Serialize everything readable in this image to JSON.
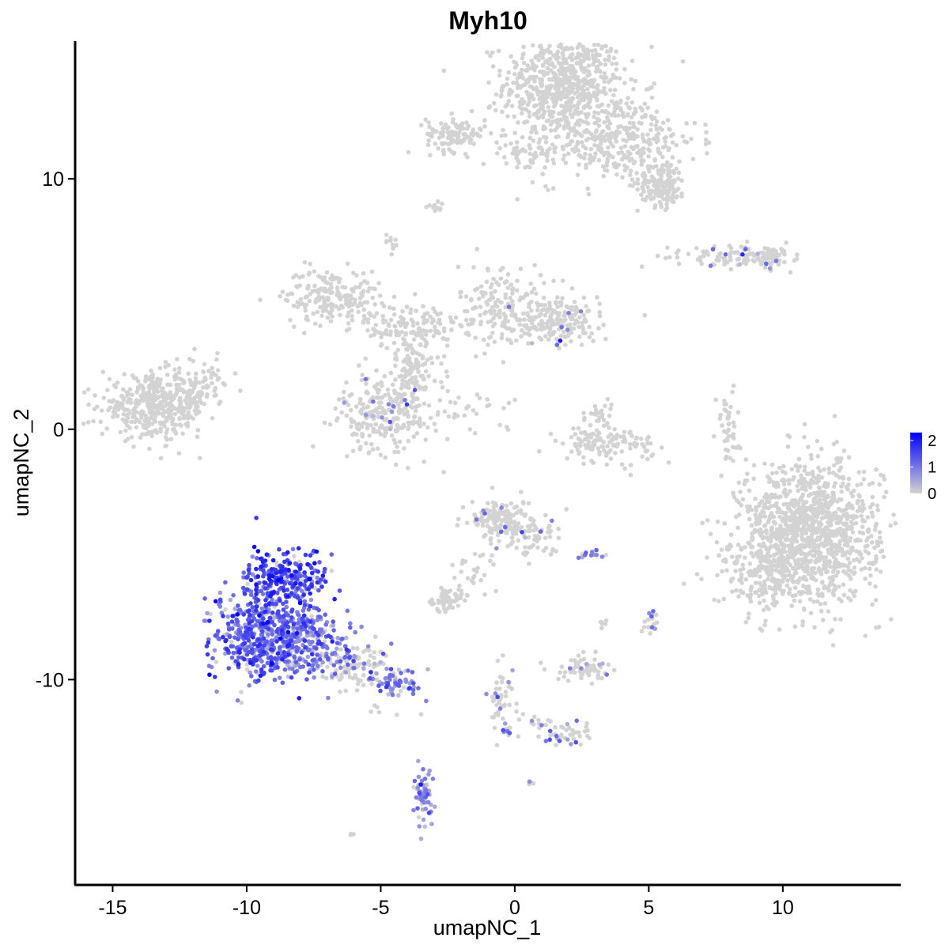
{
  "chart_data": {
    "type": "scatter",
    "title": "Myh10",
    "xlabel": "umapNC_1",
    "ylabel": "umapNC_2",
    "xlim": [
      -16.4,
      14.4
    ],
    "ylim": [
      -18.2,
      15.5
    ],
    "x_ticks": [
      -15,
      -10,
      -5,
      0,
      5,
      10
    ],
    "x_tick_labels": [
      "-15",
      "-10",
      "-5",
      "0",
      "5",
      "10"
    ],
    "y_ticks": [
      -10,
      0,
      10
    ],
    "y_tick_labels": [
      "-10",
      "0",
      "10"
    ],
    "grid": false,
    "legend": {
      "placement": "right",
      "type": "colorbar",
      "min": 0,
      "max": 2.3,
      "ticks": [
        0,
        1,
        2
      ],
      "tick_labels": [
        "0",
        "1",
        "2"
      ],
      "low_color": "#d3d3d3",
      "high_color": "#0000ff"
    },
    "clusters": [
      {
        "cx": 1.8,
        "cy": 13.8,
        "sx": 1.1,
        "sy": 1.1,
        "n": 700,
        "expr": 0.0
      },
      {
        "cx": 3.8,
        "cy": 11.6,
        "sx": 1.5,
        "sy": 0.9,
        "n": 350,
        "expr": 0.0
      },
      {
        "cx": 5.5,
        "cy": 9.8,
        "sx": 0.45,
        "sy": 0.45,
        "n": 150,
        "expr": 0.0
      },
      {
        "cx": -2.2,
        "cy": 11.8,
        "sx": 0.55,
        "sy": 0.35,
        "n": 110,
        "expr": 0.0
      },
      {
        "cx": 0.6,
        "cy": 11.0,
        "sx": 0.9,
        "sy": 0.35,
        "n": 60,
        "expr": 0.0
      },
      {
        "cx": -2.9,
        "cy": 8.8,
        "sx": 0.18,
        "sy": 0.12,
        "n": 12,
        "expr": 0.0
      },
      {
        "cx": -4.6,
        "cy": 7.4,
        "sx": 0.15,
        "sy": 0.2,
        "n": 12,
        "expr": 0.0
      },
      {
        "cx": 8.0,
        "cy": 6.9,
        "sx": 1.1,
        "sy": 0.22,
        "n": 90,
        "expr": 0.15
      },
      {
        "cx": 9.6,
        "cy": 6.9,
        "sx": 0.35,
        "sy": 0.22,
        "n": 50,
        "expr": 0.1
      },
      {
        "cx": -6.8,
        "cy": 5.3,
        "sx": 0.9,
        "sy": 0.55,
        "n": 200,
        "expr": 0.0
      },
      {
        "cx": -3.8,
        "cy": 4.1,
        "sx": 0.9,
        "sy": 0.45,
        "n": 120,
        "expr": 0.0
      },
      {
        "cx": -0.5,
        "cy": 5.0,
        "sx": 0.8,
        "sy": 0.8,
        "n": 150,
        "expr": 0.0
      },
      {
        "cx": 1.6,
        "cy": 4.3,
        "sx": 1.0,
        "sy": 0.5,
        "n": 200,
        "expr": 0.05
      },
      {
        "cx": -3.8,
        "cy": 2.4,
        "sx": 0.55,
        "sy": 0.9,
        "n": 120,
        "expr": 0.0
      },
      {
        "cx": -4.8,
        "cy": 0.6,
        "sx": 0.9,
        "sy": 0.75,
        "n": 260,
        "expr": 0.15
      },
      {
        "cx": -13.4,
        "cy": 0.9,
        "sx": 1.0,
        "sy": 0.6,
        "n": 420,
        "expr": 0.0
      },
      {
        "cx": -11.8,
        "cy": 1.8,
        "sx": 0.6,
        "sy": 0.5,
        "n": 70,
        "expr": 0.0
      },
      {
        "cx": 3.4,
        "cy": -0.6,
        "sx": 0.9,
        "sy": 0.35,
        "n": 120,
        "expr": 0.0
      },
      {
        "cx": 3.2,
        "cy": 0.5,
        "sx": 0.25,
        "sy": 0.4,
        "n": 30,
        "expr": 0.0
      },
      {
        "cx": -1.5,
        "cy": 0.7,
        "sx": 0.9,
        "sy": 0.35,
        "n": 25,
        "expr": 0.0
      },
      {
        "cx": 7.9,
        "cy": 0.2,
        "sx": 0.25,
        "sy": 0.8,
        "n": 45,
        "expr": 0.0
      },
      {
        "cx": 11.0,
        "cy": -4.1,
        "sx": 1.3,
        "sy": 1.4,
        "n": 1200,
        "expr": 0.0
      },
      {
        "cx": 9.3,
        "cy": -5.8,
        "sx": 0.8,
        "sy": 0.8,
        "n": 150,
        "expr": 0.0
      },
      {
        "cx": -0.5,
        "cy": -3.6,
        "sx": 0.6,
        "sy": 0.45,
        "n": 150,
        "expr": 0.05
      },
      {
        "cx": 0.8,
        "cy": -4.3,
        "sx": 0.6,
        "sy": 0.5,
        "n": 70,
        "expr": 0.1
      },
      {
        "cx": -2.5,
        "cy": -6.8,
        "sx": 0.35,
        "sy": 0.2,
        "n": 60,
        "expr": 0.0
      },
      {
        "cx": -1.5,
        "cy": -5.7,
        "sx": 0.45,
        "sy": 0.5,
        "n": 25,
        "expr": 0.0
      },
      {
        "cx": 2.5,
        "cy": -9.6,
        "sx": 0.5,
        "sy": 0.25,
        "n": 60,
        "expr": 0.05
      },
      {
        "cx": 2.8,
        "cy": -5.0,
        "sx": 0.25,
        "sy": 0.1,
        "n": 12,
        "expr": 0.8
      },
      {
        "cx": 5.0,
        "cy": -7.5,
        "sx": 0.15,
        "sy": 0.3,
        "n": 18,
        "expr": 0.5
      },
      {
        "cx": 3.4,
        "cy": -7.8,
        "sx": 0.12,
        "sy": 0.2,
        "n": 6,
        "expr": 0.0
      },
      {
        "cx": -0.5,
        "cy": -10.8,
        "sx": 0.3,
        "sy": 0.6,
        "n": 45,
        "expr": 0.3
      },
      {
        "cx": 1.9,
        "cy": -12.2,
        "sx": 0.55,
        "sy": 0.25,
        "n": 40,
        "expr": 0.4
      },
      {
        "cx": 0.8,
        "cy": -11.7,
        "sx": 0.3,
        "sy": 0.15,
        "n": 12,
        "expr": 0.3
      },
      {
        "cx": -0.3,
        "cy": -12.1,
        "sx": 0.2,
        "sy": 0.1,
        "n": 10,
        "expr": 0.6
      },
      {
        "cx": -3.4,
        "cy": -14.7,
        "sx": 0.2,
        "sy": 0.6,
        "n": 60,
        "expr": 0.8
      },
      {
        "cx": 0.6,
        "cy": -14.1,
        "sx": 0.06,
        "sy": 0.05,
        "n": 4,
        "expr": 0.2
      },
      {
        "cx": -6.1,
        "cy": -16.2,
        "sx": 0.05,
        "sy": 0.05,
        "n": 3,
        "expr": 0.0
      },
      {
        "cx": -8.6,
        "cy": -6.0,
        "sx": 0.75,
        "sy": 0.65,
        "n": 280,
        "expr": 1.5
      },
      {
        "cx": -9.4,
        "cy": -8.3,
        "sx": 0.9,
        "sy": 0.85,
        "n": 500,
        "expr": 1.2
      },
      {
        "cx": -7.7,
        "cy": -8.3,
        "sx": 0.7,
        "sy": 0.7,
        "n": 180,
        "expr": 0.9
      },
      {
        "cx": -6.0,
        "cy": -9.4,
        "sx": 0.7,
        "sy": 0.45,
        "n": 130,
        "expr": 0.5
      },
      {
        "cx": -4.4,
        "cy": -10.1,
        "sx": 0.45,
        "sy": 0.3,
        "n": 60,
        "expr": 0.9
      },
      {
        "cx": -4.5,
        "cy": -11.2,
        "sx": 0.4,
        "sy": 0.2,
        "n": 6,
        "expr": 0.0
      }
    ]
  }
}
